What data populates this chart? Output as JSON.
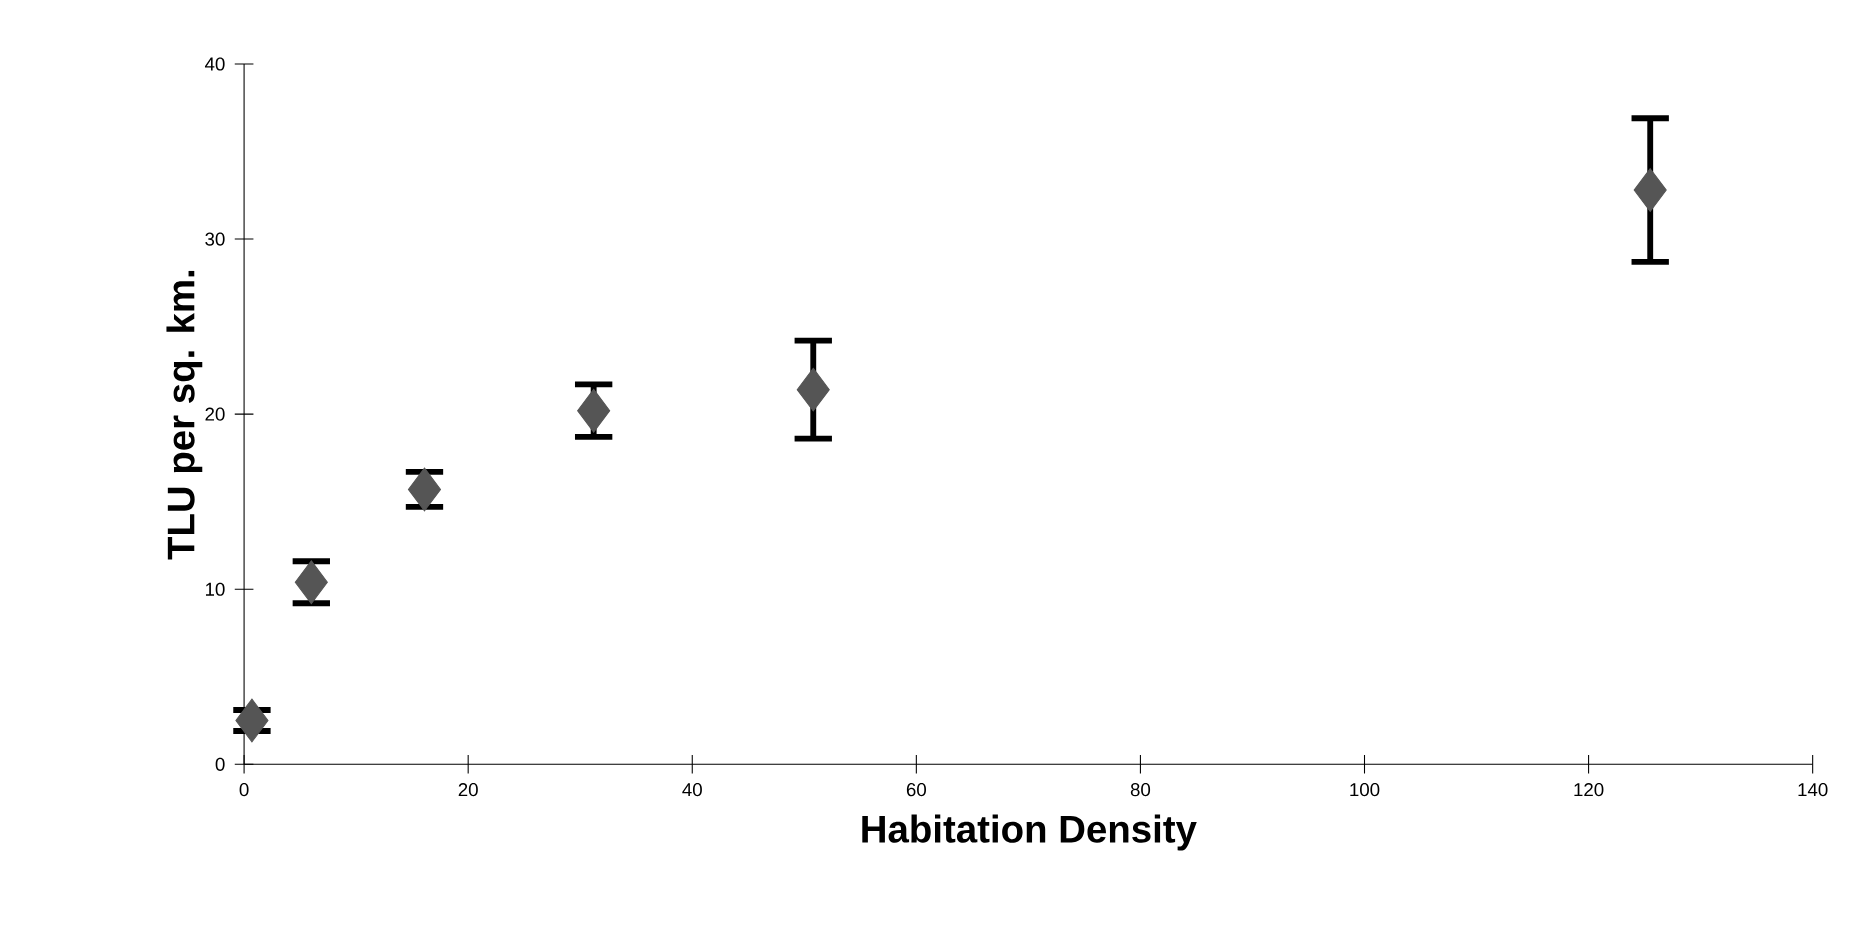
{
  "chart_data": {
    "type": "scatter",
    "xlabel": "Habitation Density",
    "ylabel": "TLU per sq. km.",
    "x": [
      0.7,
      6.0,
      16.1,
      31.2,
      50.8,
      125.5
    ],
    "values": [
      2.5,
      10.4,
      15.7,
      20.2,
      21.4,
      32.8
    ],
    "errors": [
      0.6,
      1.2,
      1.0,
      1.5,
      2.8,
      4.1
    ],
    "color": "#555555",
    "marker": "diamond",
    "xlim": [
      0,
      140
    ],
    "ylim": [
      0,
      40
    ],
    "xticks": [
      0,
      20,
      40,
      60,
      80,
      100,
      120,
      140
    ],
    "yticks": [
      0,
      10,
      20,
      30,
      40
    ]
  }
}
